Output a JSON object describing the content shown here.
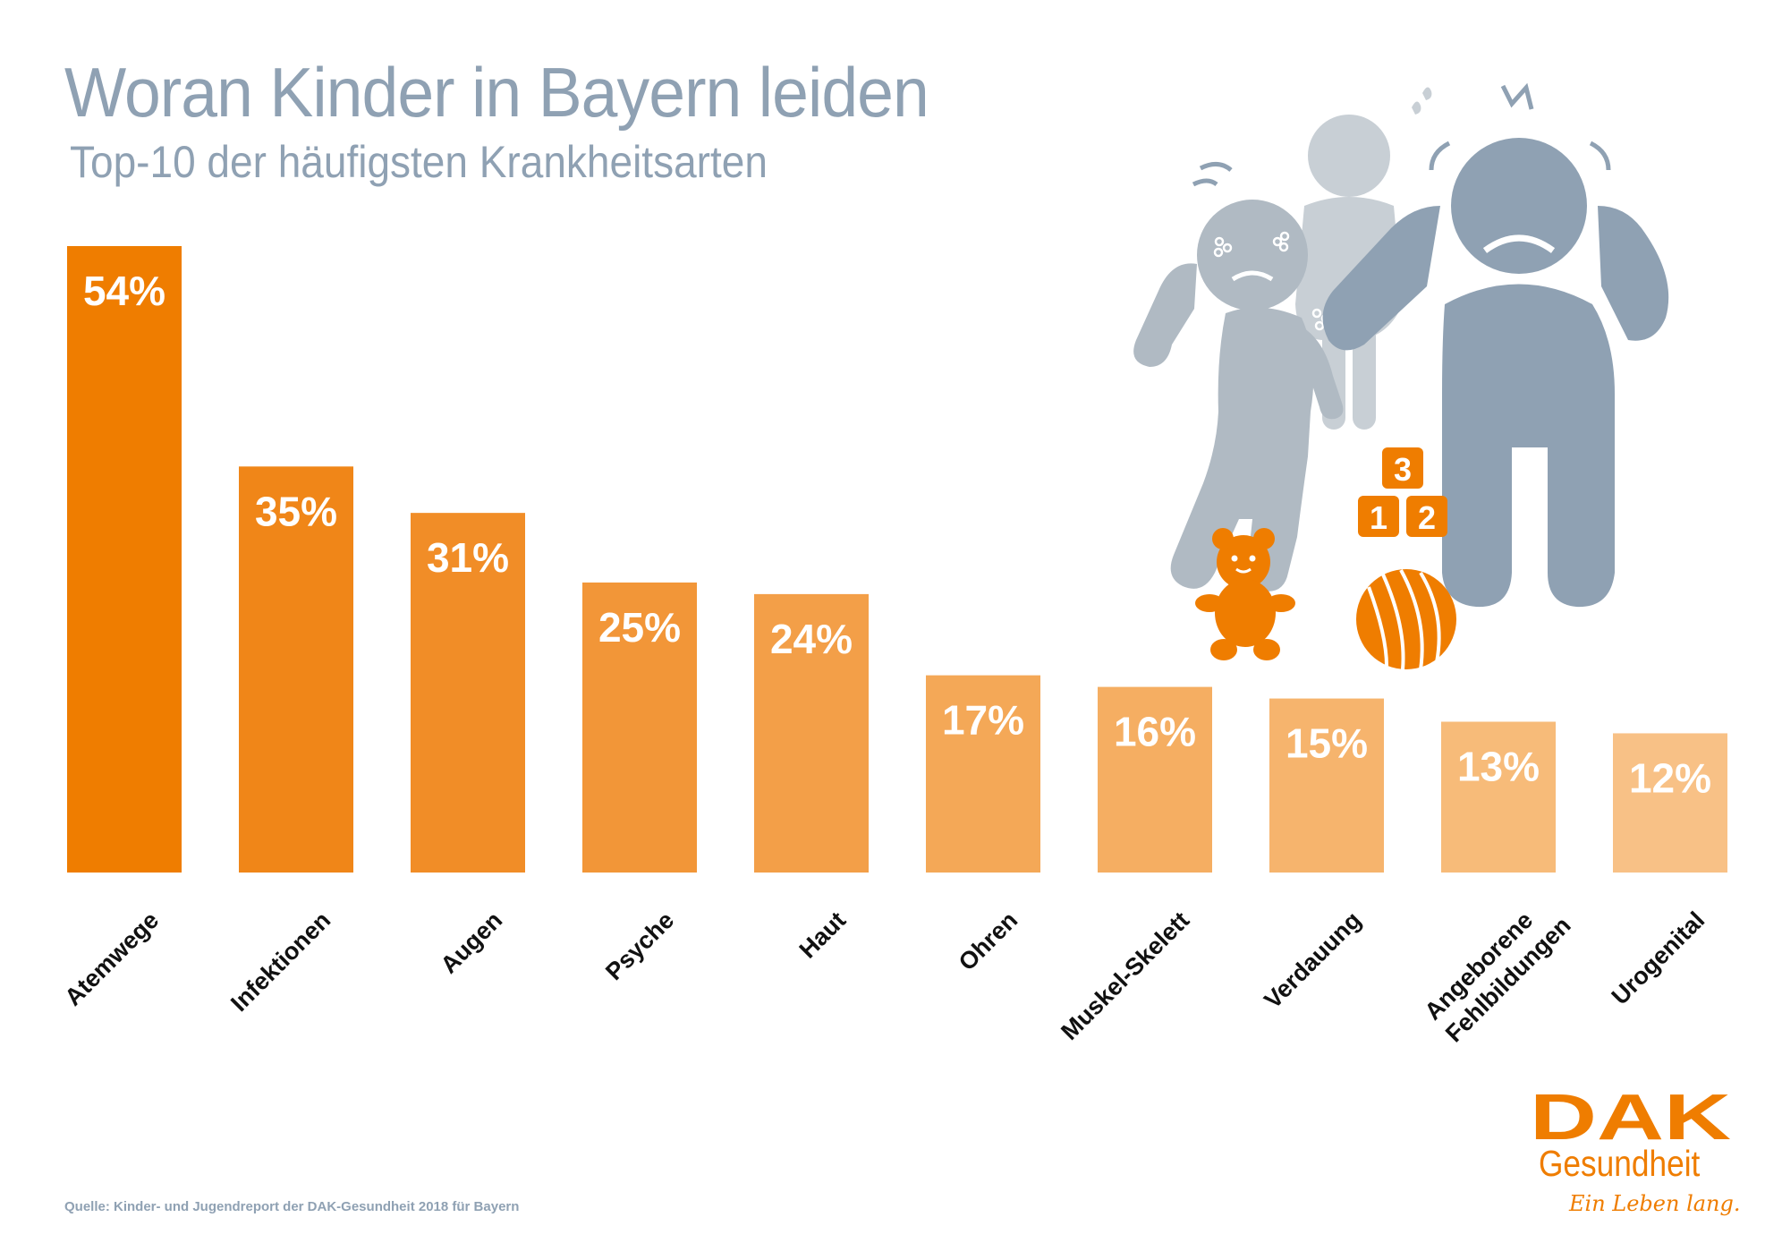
{
  "chart_data": {
    "type": "bar",
    "title": "Woran Kinder in Bayern leiden",
    "subtitle": "Top-10 der häufigsten Krankheitsarten",
    "categories": [
      [
        "Atemwege"
      ],
      [
        "Infektionen"
      ],
      [
        "Augen"
      ],
      [
        "Psyche"
      ],
      [
        "Haut"
      ],
      [
        "Ohren"
      ],
      [
        "Muskel-Skelett"
      ],
      [
        "Verdauung"
      ],
      [
        "Angeborene",
        "Fehlbildungen"
      ],
      [
        "Urogenital"
      ]
    ],
    "values": [
      54,
      35,
      31,
      25,
      24,
      17,
      16,
      15,
      13,
      12
    ],
    "value_labels": [
      "54%",
      "35%",
      "31%",
      "25%",
      "24%",
      "17%",
      "16%",
      "15%",
      "13%",
      "12%"
    ],
    "unit": "%",
    "ylim": [
      0,
      54
    ],
    "xlabel": "",
    "ylabel": "",
    "grid": false,
    "legend": "none",
    "bar_colors": [
      "#ef7d00",
      "#f08618",
      "#f18d27",
      "#f29638",
      "#f39f48",
      "#f4a857",
      "#f5ae62",
      "#f6b46d",
      "#f7bb79",
      "#f8c186"
    ]
  },
  "source": "Quelle: Kinder- und Jugendreport der DAK-Gesundheit 2018 für Bayern",
  "illustration": {
    "block_numbers": [
      "3",
      "1",
      "2"
    ]
  },
  "logo": {
    "mark": "DAK",
    "name": "Gesundheit",
    "claim": "Ein Leben lang."
  },
  "colors": {
    "title": "#8fa1b3",
    "brand_orange": "#ef7d00",
    "figure_light": "#b0bac3",
    "figure_lighter": "#c8cfd5",
    "figure_dark": "#8fa1b3"
  }
}
